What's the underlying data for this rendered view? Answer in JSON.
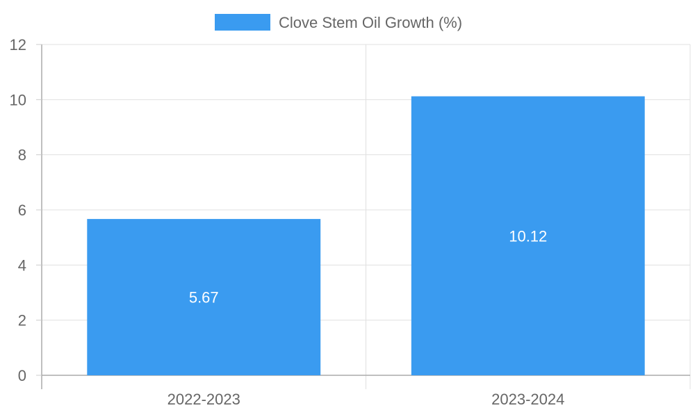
{
  "chart_data": {
    "type": "bar",
    "title": "",
    "xlabel": "",
    "ylabel": "",
    "categories": [
      "2022-2023",
      "2023-2024"
    ],
    "series": [
      {
        "name": "Clove Stem Oil Growth (%)",
        "values": [
          5.67,
          10.12
        ],
        "color": "#3a9bf0"
      }
    ],
    "data_labels": [
      "5.67",
      "10.12"
    ],
    "ylim": [
      0,
      12
    ],
    "yticks": [
      0,
      2,
      4,
      6,
      8,
      10,
      12
    ],
    "grid": true,
    "legend_position": "top-center"
  }
}
